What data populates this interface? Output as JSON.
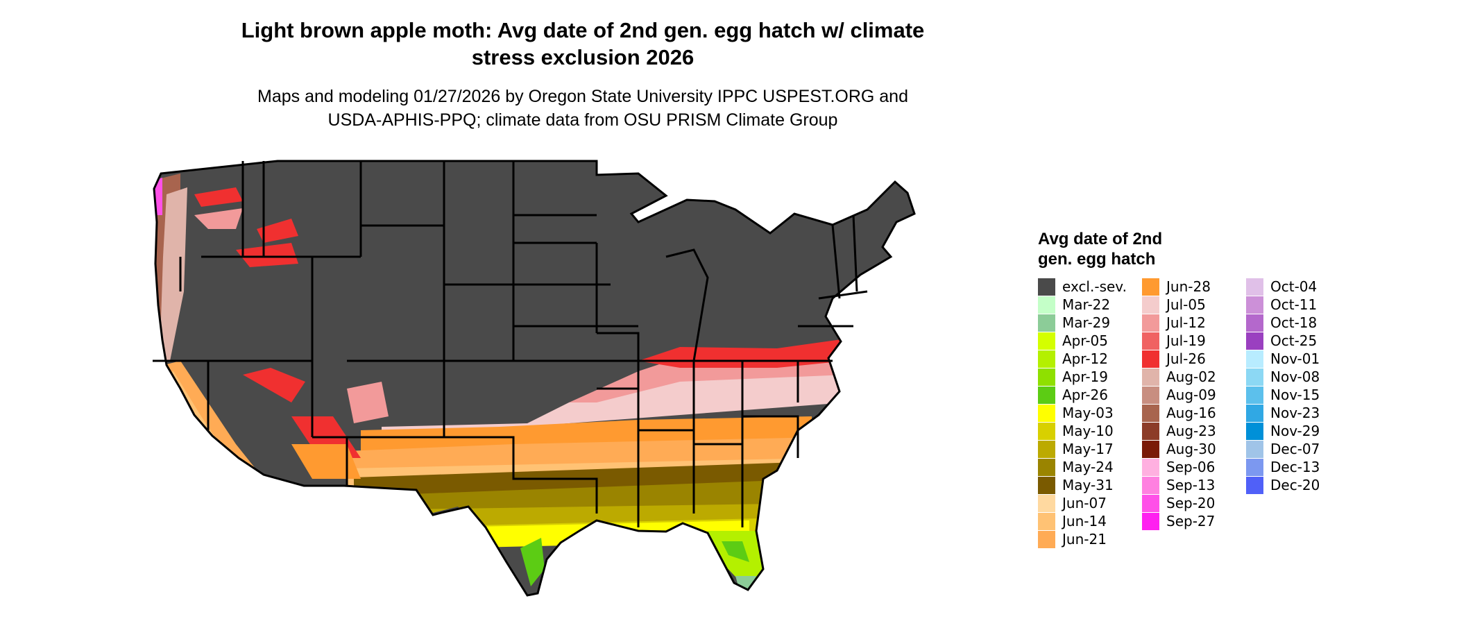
{
  "header": {
    "title_line1": "Light brown apple moth: Avg date of 2nd gen. egg hatch w/ climate",
    "title_line2": "stress exclusion 2026",
    "subtitle_line1": "Maps and modeling 01/27/2026 by Oregon State University IPPC USPEST.ORG and",
    "subtitle_line2": "USDA-APHIS-PPQ; climate data from OSU PRISM Climate Group"
  },
  "map": {
    "region": "Contiguous United States",
    "colors": {
      "excluded": "#4a4a4a",
      "state_border": "#000000"
    }
  },
  "legend": {
    "title_line1": "Avg date of 2nd",
    "title_line2": "gen. egg hatch",
    "items": [
      {
        "label": "excl.-sev.",
        "color": "#4a4a4a"
      },
      {
        "label": "Mar-22",
        "color": "#c4ffc8"
      },
      {
        "label": "Mar-29",
        "color": "#8ccc98"
      },
      {
        "label": "Apr-05",
        "color": "#d4ff00"
      },
      {
        "label": "Apr-12",
        "color": "#b4f000"
      },
      {
        "label": "Apr-19",
        "color": "#8fe000"
      },
      {
        "label": "Apr-26",
        "color": "#5ccc14"
      },
      {
        "label": "May-03",
        "color": "#ffff00"
      },
      {
        "label": "May-10",
        "color": "#d8d000"
      },
      {
        "label": "May-17",
        "color": "#bcaa00"
      },
      {
        "label": "May-24",
        "color": "#9a8400"
      },
      {
        "label": "May-31",
        "color": "#7a5a00"
      },
      {
        "label": "Jun-07",
        "color": "#ffd9a0"
      },
      {
        "label": "Jun-14",
        "color": "#ffc274"
      },
      {
        "label": "Jun-21",
        "color": "#ffab55"
      },
      {
        "label": "Jun-28",
        "color": "#ff9a30"
      },
      {
        "label": "Jul-05",
        "color": "#f4cccc"
      },
      {
        "label": "Jul-12",
        "color": "#f29a9a"
      },
      {
        "label": "Jul-19",
        "color": "#f06262"
      },
      {
        "label": "Jul-26",
        "color": "#f03030"
      },
      {
        "label": "Aug-02",
        "color": "#e0b4aa"
      },
      {
        "label": "Aug-09",
        "color": "#c88e80"
      },
      {
        "label": "Aug-16",
        "color": "#a8644e"
      },
      {
        "label": "Aug-23",
        "color": "#8c3c28"
      },
      {
        "label": "Aug-30",
        "color": "#7a1a08"
      },
      {
        "label": "Sep-06",
        "color": "#ffb0e0"
      },
      {
        "label": "Sep-13",
        "color": "#ff80e0"
      },
      {
        "label": "Sep-20",
        "color": "#ff50e8"
      },
      {
        "label": "Sep-27",
        "color": "#ff20f0"
      },
      {
        "label": "Oct-04",
        "color": "#e0c0e8"
      },
      {
        "label": "Oct-11",
        "color": "#cc90d8"
      },
      {
        "label": "Oct-18",
        "color": "#b468cc"
      },
      {
        "label": "Oct-25",
        "color": "#9a40c0"
      },
      {
        "label": "Nov-01",
        "color": "#b8ecff"
      },
      {
        "label": "Nov-08",
        "color": "#8cd8f4"
      },
      {
        "label": "Nov-15",
        "color": "#5cc0ec"
      },
      {
        "label": "Nov-23",
        "color": "#30a8e4"
      },
      {
        "label": "Nov-29",
        "color": "#0090d8"
      },
      {
        "label": "Dec-07",
        "color": "#a0c4e8"
      },
      {
        "label": "Dec-13",
        "color": "#7c98f0"
      },
      {
        "label": "Dec-20",
        "color": "#5060f8"
      }
    ]
  }
}
